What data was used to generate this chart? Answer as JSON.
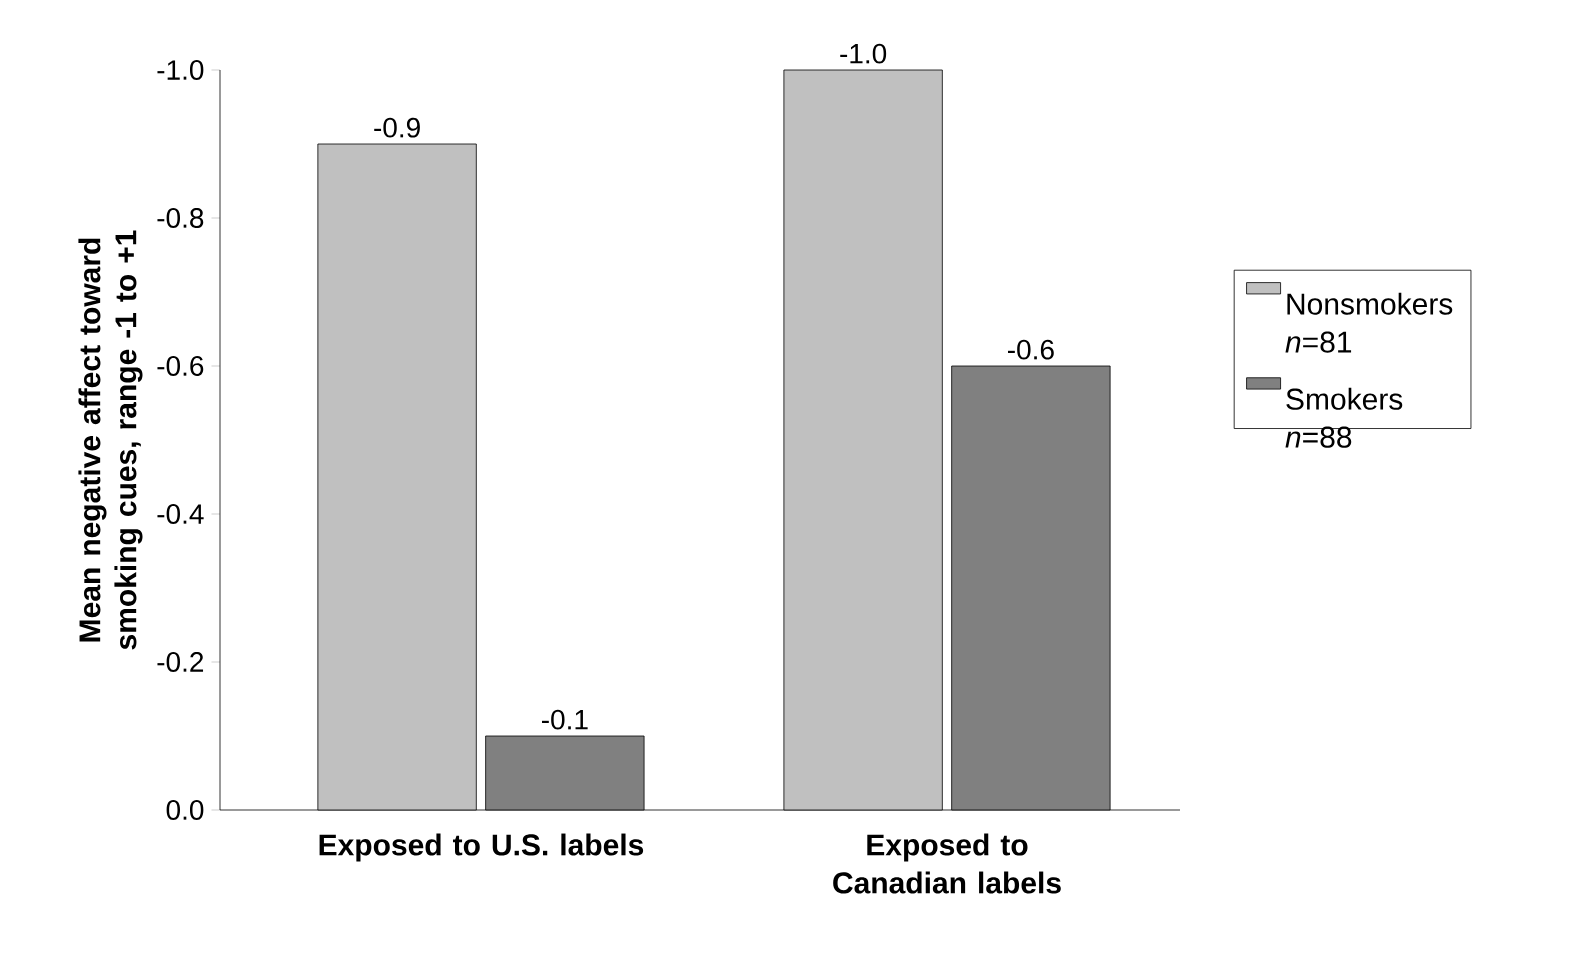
{
  "chart_data": {
    "type": "bar",
    "ylabel": "Mean negative affect toward smoking cues, range -1 to +1",
    "categories": [
      "Exposed to U.S. labels",
      "Exposed to Canadian labels"
    ],
    "series": [
      {
        "name": "Nonsmokers *n*=81",
        "color": "#c0c0c0",
        "values": [
          -0.9,
          -1.0
        ],
        "value_labels": [
          "-0.9",
          "-1.0"
        ]
      },
      {
        "name": "Smokers *n*=88",
        "color": "#808080",
        "values": [
          -0.1,
          -0.6
        ],
        "value_labels": [
          "-0.1",
          "-0.6"
        ]
      }
    ],
    "ylim": [
      0,
      -1.0
    ],
    "yticks": [
      {
        "value": 0,
        "label": "0.0"
      },
      {
        "value": -0.2,
        "label": "-0.2"
      },
      {
        "value": -0.4,
        "label": "-0.4"
      },
      {
        "value": -0.6,
        "label": "-0.6"
      },
      {
        "value": -0.8,
        "label": "-0.8"
      },
      {
        "value": -1.0,
        "label": "-1.0"
      }
    ],
    "legend": "right",
    "grid": false
  }
}
